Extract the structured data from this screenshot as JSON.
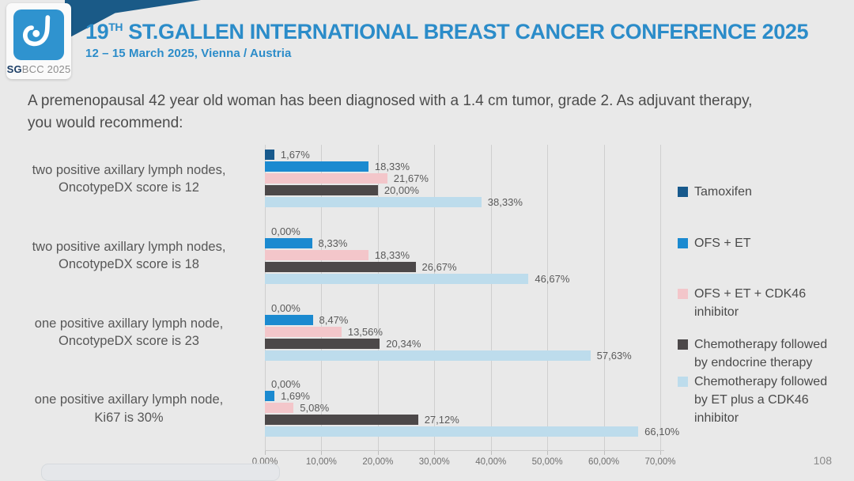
{
  "header": {
    "logo_sg": "SG",
    "logo_bcc": "BCC 2025",
    "title_number": "19",
    "title_ordinal": "TH",
    "title_rest": " ST.GALLEN INTERNATIONAL BREAST CANCER CONFERENCE 2025",
    "subtitle": "12 – 15 March 2025, Vienna / Austria"
  },
  "question": "A premenopausal 42 year old woman has been diagnosed with a 1.4 cm tumor, grade 2. As adjuvant therapy, you would recommend:",
  "page_number": "108",
  "colors": {
    "background": "#e9e9e9",
    "ribbon_navy": "#1a5a87",
    "title_blue": "#2b8cc9",
    "logo_blue": "#2f93cf",
    "gridline": "#cfcfcf"
  },
  "chart_data": {
    "type": "bar",
    "orientation": "horizontal",
    "xlim": [
      0,
      70
    ],
    "grid": true,
    "legend_position": "right",
    "x_ticks": [
      "0,00%",
      "10,00%",
      "20,00%",
      "30,00%",
      "40,00%",
      "50,00%",
      "60,00%",
      "70,00%"
    ],
    "categories": [
      [
        "two positive axillary lymph nodes,",
        "OncotypeDX score is 12"
      ],
      [
        "two positive axillary lymph nodes,",
        "OncotypeDX score is 18"
      ],
      [
        "one positive axillary lymph node,",
        "OncotypeDX score is 23"
      ],
      [
        "one positive axillary lymph node,",
        "Ki67 is 30%"
      ]
    ],
    "series": [
      {
        "name": "Tamoxifen",
        "color": "#17598c",
        "values": [
          1.67,
          0.0,
          0.0,
          0.0
        ],
        "labels": [
          "1,67%",
          "0,00%",
          "0,00%",
          "0,00%"
        ]
      },
      {
        "name": "OFS + ET",
        "color": "#1b8ad0",
        "values": [
          18.33,
          8.33,
          8.47,
          1.69
        ],
        "labels": [
          "18,33%",
          "8,33%",
          "8,47%",
          "1,69%"
        ]
      },
      {
        "name": "OFS + ET + CDK46 inhibitor",
        "color": "#f3c6ca",
        "values": [
          21.67,
          18.33,
          13.56,
          5.08
        ],
        "labels": [
          "21,67%",
          "18,33%",
          "13,56%",
          "5,08%"
        ]
      },
      {
        "name": "Chemotherapy followed by endocrine therapy",
        "color": "#4c4849",
        "values": [
          20.0,
          26.67,
          20.34,
          27.12
        ],
        "labels": [
          "20,00%",
          "26,67%",
          "20,34%",
          "27,12%"
        ]
      },
      {
        "name": "Chemotherapy followed by ET plus a CDK46 inhibitor",
        "color": "#bddcec",
        "values": [
          38.33,
          46.67,
          57.63,
          66.1
        ],
        "labels": [
          "38,33%",
          "46,67%",
          "57,63%",
          "66,10%"
        ]
      }
    ]
  }
}
